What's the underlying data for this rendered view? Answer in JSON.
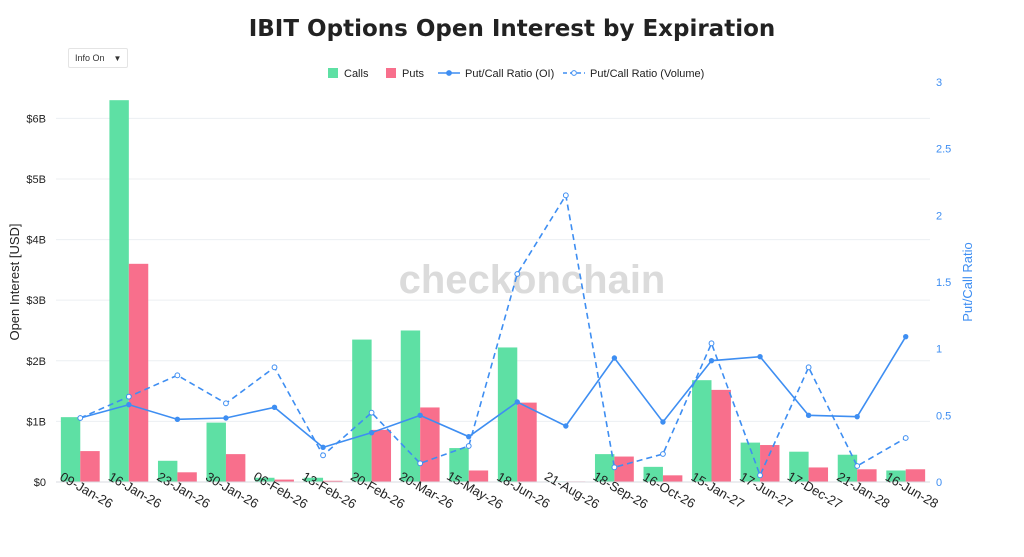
{
  "controls": {
    "info_toggle_label": "Info On",
    "info_toggle_caret": "▼"
  },
  "watermark": "checkonchain",
  "colors": {
    "calls": "#5ee0a4",
    "puts": "#f86f8c",
    "ratio": "#3e8ef2",
    "grid": "#eceff2",
    "text": "#222222"
  },
  "chart_data": {
    "type": "bar",
    "title": "IBIT Options Open Interest by Expiration",
    "xlabel": "",
    "ylabel": "Open Interest [USD]",
    "y2label": "Put/Call Ratio",
    "categories": [
      "09-Jan-26",
      "16-Jan-26",
      "23-Jan-26",
      "30-Jan-26",
      "06-Feb-26",
      "13-Feb-26",
      "20-Feb-26",
      "20-Mar-26",
      "15-May-26",
      "18-Jun-26",
      "21-Aug-26",
      "18-Sep-26",
      "16-Oct-26",
      "15-Jan-27",
      "17-Jun-27",
      "17-Dec-27",
      "21-Jan-28",
      "16-Jun-28"
    ],
    "ylim": [
      0,
      6.6
    ],
    "y2lim": [
      0,
      3
    ],
    "yticks": [
      {
        "v": 0,
        "label": "$0"
      },
      {
        "v": 1,
        "label": "$1B"
      },
      {
        "v": 2,
        "label": "$2B"
      },
      {
        "v": 3,
        "label": "$3B"
      },
      {
        "v": 4,
        "label": "$4B"
      },
      {
        "v": 5,
        "label": "$5B"
      },
      {
        "v": 6,
        "label": "$6B"
      }
    ],
    "y2ticks": [
      {
        "v": 0,
        "label": "0"
      },
      {
        "v": 0.5,
        "label": "0.5"
      },
      {
        "v": 1,
        "label": "1"
      },
      {
        "v": 1.5,
        "label": "1.5"
      },
      {
        "v": 2,
        "label": "2"
      },
      {
        "v": 2.5,
        "label": "2.5"
      },
      {
        "v": 3,
        "label": "3"
      }
    ],
    "legend_position": "top-center",
    "grid": true,
    "series": [
      {
        "name": "Calls",
        "kind": "bar",
        "axis": "y",
        "values": [
          1.07,
          6.3,
          0.35,
          0.98,
          0.07,
          0.07,
          2.35,
          2.5,
          0.56,
          2.22,
          0.01,
          0.46,
          0.25,
          1.68,
          0.65,
          0.5,
          0.45,
          0.19
        ]
      },
      {
        "name": "Puts",
        "kind": "bar",
        "axis": "y",
        "values": [
          0.51,
          3.6,
          0.16,
          0.46,
          0.04,
          0.02,
          0.86,
          1.23,
          0.19,
          1.31,
          0.01,
          0.42,
          0.11,
          1.52,
          0.61,
          0.24,
          0.21,
          0.21
        ]
      },
      {
        "name": "Put/Call Ratio (OI)",
        "kind": "line",
        "axis": "y2",
        "dash": false,
        "values": [
          0.48,
          0.58,
          0.47,
          0.48,
          0.56,
          0.26,
          0.37,
          0.5,
          0.34,
          0.6,
          0.42,
          0.93,
          0.45,
          0.91,
          0.94,
          0.5,
          0.49,
          1.09
        ]
      },
      {
        "name": "Put/Call Ratio (Volume)",
        "kind": "line",
        "axis": "y2",
        "dash": true,
        "values": [
          0.48,
          0.64,
          0.8,
          0.59,
          0.86,
          0.2,
          0.52,
          0.14,
          0.27,
          1.56,
          2.15,
          0.11,
          0.21,
          1.04,
          0.05,
          0.86,
          0.12,
          0.33
        ]
      }
    ]
  }
}
